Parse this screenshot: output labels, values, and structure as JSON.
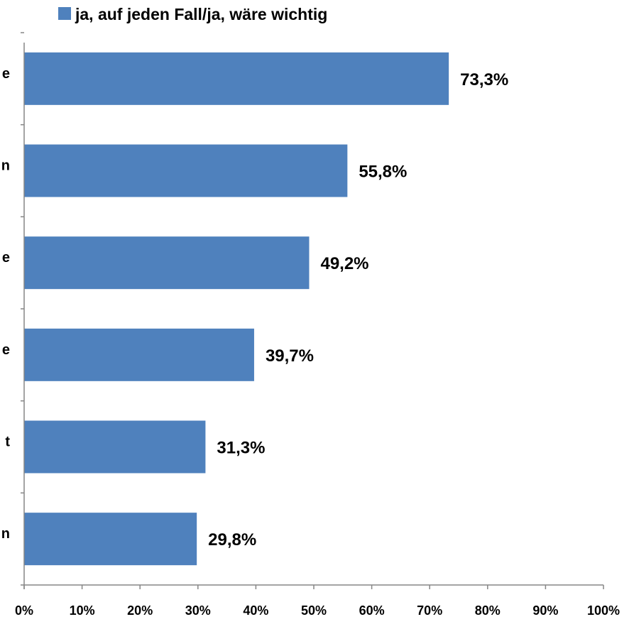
{
  "chart_data": {
    "type": "bar",
    "orientation": "horizontal",
    "categories": [
      "e",
      "n",
      "e",
      "e",
      "t",
      "n"
    ],
    "series": [
      {
        "name": "ja, auf jeden Fall/ja, wäre wichtig",
        "values": [
          73.3,
          55.8,
          49.2,
          39.7,
          31.3,
          29.8
        ],
        "value_labels": [
          "73,3%",
          "55,8%",
          "49,2%",
          "39,7%",
          "31,3%",
          "29,8%"
        ]
      }
    ],
    "xlim": [
      0,
      100
    ],
    "x_ticks": [
      0,
      10,
      20,
      30,
      40,
      50,
      60,
      70,
      80,
      90,
      100
    ],
    "x_tick_labels": [
      "0%",
      "10%",
      "20%",
      "30%",
      "40%",
      "50%",
      "60%",
      "70%",
      "80%",
      "90%",
      "100%"
    ],
    "legend_position": "top",
    "grid": false,
    "bar_color": "#4F81BD"
  }
}
